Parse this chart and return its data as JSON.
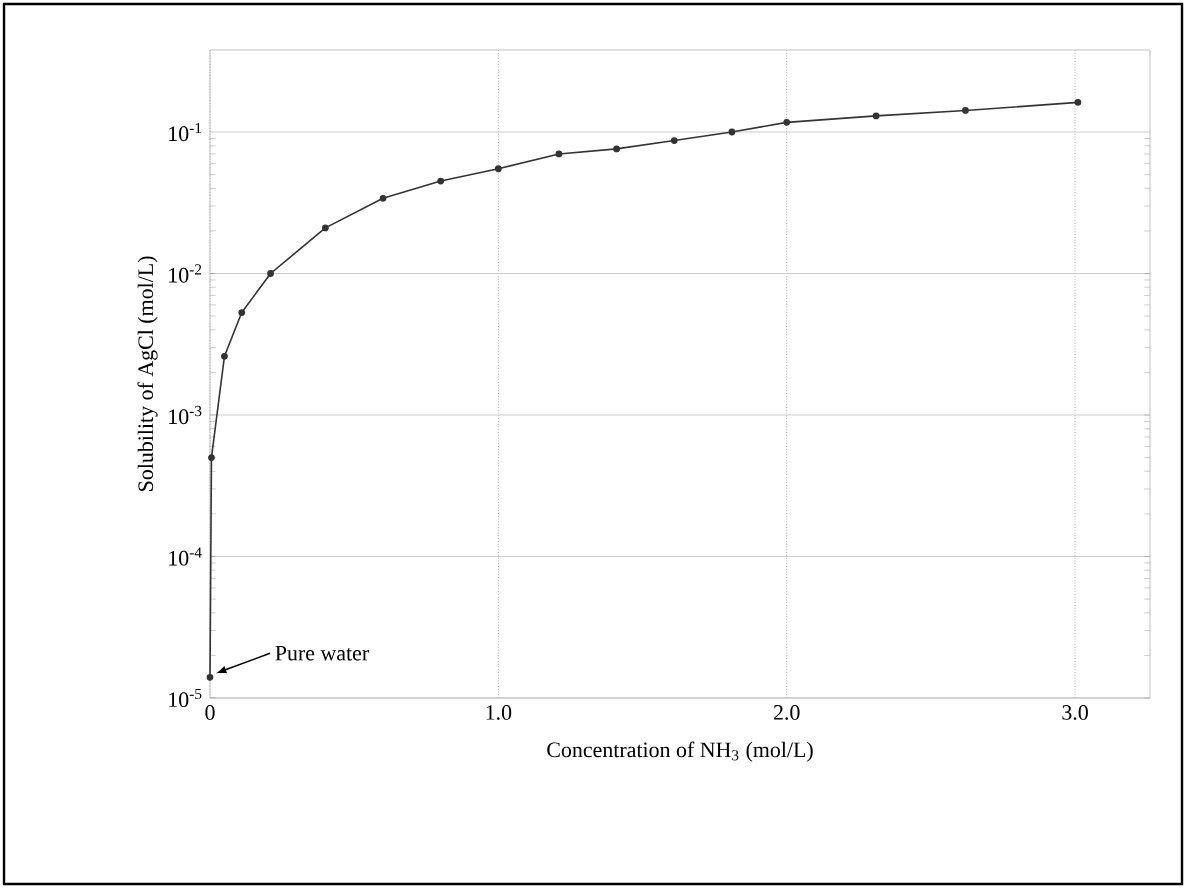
{
  "chart_data": {
    "type": "line",
    "xlabel": "Concentration of NH$_{3}$ (mol/L)",
    "ylabel": "Solubility of AgCl (mol/L)",
    "x": [
      0,
      0.005,
      0.05,
      0.11,
      0.21,
      0.4,
      0.6,
      0.8,
      1.0,
      1.21,
      1.41,
      1.61,
      1.81,
      2.0,
      2.31,
      2.62,
      3.01
    ],
    "series": [
      {
        "color": "#333333",
        "values": [
          1.4e-05,
          0.0005,
          0.0026,
          0.0053,
          0.01,
          0.021,
          0.034,
          0.045,
          0.055,
          0.07,
          0.076,
          0.087,
          0.1,
          0.117,
          0.13,
          0.142,
          0.162
        ]
      }
    ],
    "xlim": [
      0,
      3.26
    ],
    "ylim": [
      1e-05,
      0.38
    ],
    "xticks": [
      0,
      {
        "value": 1,
        "label": "1.0"
      },
      {
        "value": 2,
        "label": "2.0"
      },
      {
        "value": 3,
        "label": "3.0"
      }
    ],
    "yticks": [
      {
        "value": 1e-05,
        "label": "10$^{-5}$"
      },
      {
        "value": 0.0001,
        "label": "10$^{-4}$"
      },
      {
        "value": 0.001,
        "label": "10$^{-3}$"
      },
      {
        "value": 0.01,
        "label": "10$^{-2}$"
      },
      {
        "value": 0.1,
        "label": "10$^{-1}$"
      }
    ],
    "log": "y",
    "grid": true,
    "marker": "circle",
    "line_style": "solid",
    "annotations": [
      {
        "text": "Pure water",
        "x": 0,
        "y": 1.4e-05
      }
    ]
  }
}
